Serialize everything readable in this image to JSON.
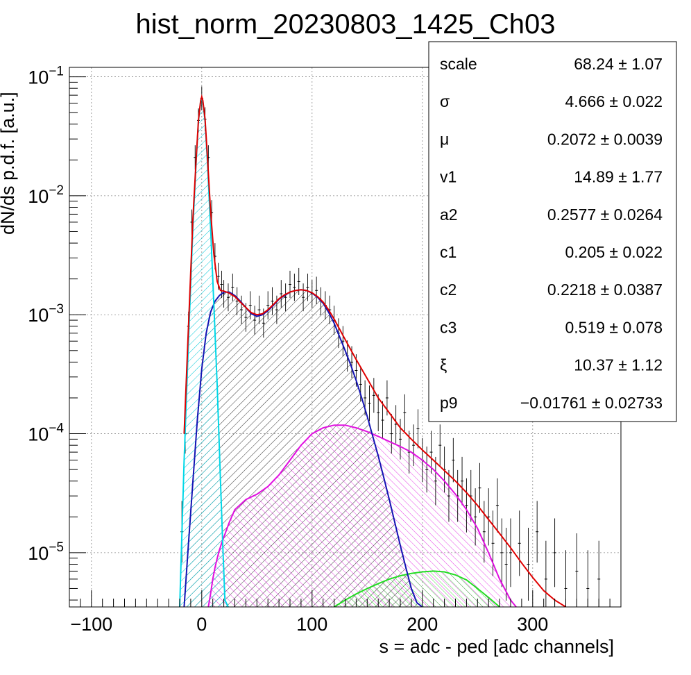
{
  "chart_data": {
    "type": "histogram",
    "title": "hist_norm_20230803_1425_Ch03",
    "xlabel": "s = adc - ped [adc channels]",
    "ylabel": "dN/ds p.d.f. [a.u.]",
    "xlim": [
      -120,
      380
    ],
    "ylim": [
      3.5e-06,
      0.12
    ],
    "y_scale": "log",
    "grid": true,
    "x_ticks": [
      {
        "value": -100,
        "label": "−100"
      },
      {
        "value": 0,
        "label": "0"
      },
      {
        "value": 100,
        "label": "100"
      },
      {
        "value": 200,
        "label": "200"
      },
      {
        "value": 300,
        "label": "300"
      }
    ],
    "y_ticks": [
      {
        "value": 0.1,
        "base": "10",
        "exp": "−1"
      },
      {
        "value": 0.01,
        "base": "10",
        "exp": "−2"
      },
      {
        "value": 0.001,
        "base": "10",
        "exp": "−3"
      },
      {
        "value": 0.0001,
        "base": "10",
        "exp": "−4"
      },
      {
        "value": 1e-05,
        "base": "10",
        "exp": "−5"
      }
    ],
    "stats_box": {
      "placement": "top-right",
      "rows": [
        {
          "name": "scale",
          "value": "68.24 ± 1.07"
        },
        {
          "name": "σ",
          "value": "4.666 ± 0.022"
        },
        {
          "name": "μ",
          "value": "0.2072 ± 0.0039"
        },
        {
          "name": "v1",
          "value": "14.89 ± 1.77"
        },
        {
          "name": "a2",
          "value": "0.2577 ± 0.0264"
        },
        {
          "name": "c1",
          "value": "0.205 ± 0.022"
        },
        {
          "name": "c2",
          "value": "0.2218 ± 0.0387"
        },
        {
          "name": "c3",
          "value": "0.519 ± 0.078"
        },
        {
          "name": "ξ",
          "value": "10.37 ± 1.12"
        },
        {
          "name": "p9",
          "value": "−0.01761 ± 0.02733"
        }
      ]
    },
    "series": [
      {
        "role": "pedestal-component",
        "color": "#00d8e8",
        "fill": "hatched",
        "x": [
          -20,
          -16,
          -12,
          -8,
          -5,
          -3,
          -1,
          0,
          1,
          3,
          5,
          8,
          11,
          14,
          17,
          19,
          21,
          24
        ],
        "y": [
          3.5e-06,
          6e-05,
          0.0006,
          0.0055,
          0.02,
          0.042,
          0.062,
          0.066,
          0.062,
          0.042,
          0.02,
          0.0055,
          0.0012,
          0.00025,
          4e-05,
          1.2e-05,
          4e-06,
          3.5e-06
        ]
      },
      {
        "role": "signal-component",
        "color": "#1414b4",
        "fill": "hatched",
        "x": [
          -16,
          -12,
          -8,
          -4,
          0,
          4,
          8,
          12,
          16,
          20,
          25,
          30,
          35,
          40,
          45,
          50,
          55,
          60,
          65,
          70,
          75,
          80,
          85,
          90,
          95,
          100,
          105,
          110,
          115,
          120,
          125,
          130,
          135,
          140,
          145,
          150,
          155,
          160,
          165,
          170,
          175,
          180,
          185,
          190,
          195,
          200
        ],
        "y": [
          3.5e-06,
          1.2e-05,
          4e-05,
          0.00013,
          0.00035,
          0.0007,
          0.00105,
          0.0013,
          0.00145,
          0.00155,
          0.00155,
          0.00145,
          0.0013,
          0.00115,
          0.00102,
          0.00097,
          0.001,
          0.00108,
          0.0012,
          0.00135,
          0.00145,
          0.00155,
          0.0016,
          0.00162,
          0.0016,
          0.00152,
          0.0014,
          0.00125,
          0.00105,
          0.00085,
          0.00065,
          0.0005,
          0.00038,
          0.00028,
          0.0002,
          0.00014,
          9.5e-05,
          6.5e-05,
          4.3e-05,
          2.8e-05,
          1.8e-05,
          1.15e-05,
          7.5e-06,
          5e-06,
          3.8e-06,
          3.5e-06
        ]
      },
      {
        "role": "background-component-1",
        "color": "#e010e0",
        "fill": "hatched",
        "x": [
          6,
          8,
          10,
          12,
          14,
          16,
          18,
          20,
          25,
          30,
          40,
          50,
          60,
          70,
          80,
          90,
          100,
          110,
          120,
          130,
          140,
          150,
          160,
          170,
          180,
          190,
          200,
          210,
          220,
          230,
          240,
          250,
          260,
          270,
          280,
          285
        ],
        "y": [
          3.5e-06,
          4.5e-06,
          6e-06,
          7.5e-06,
          9e-06,
          1.05e-05,
          1.2e-05,
          1.35e-05,
          1.8e-05,
          2.3e-05,
          2.8e-05,
          3.1e-05,
          3.6e-05,
          4.5e-05,
          6e-05,
          8e-05,
          0.0001,
          0.000112,
          0.000118,
          0.000118,
          0.000112,
          0.000104,
          9.5e-05,
          8.6e-05,
          7.8e-05,
          7e-05,
          6e-05,
          5e-05,
          4e-05,
          3.1e-05,
          2.3e-05,
          1.6e-05,
          1e-05,
          6e-06,
          4e-06,
          3.5e-06
        ]
      },
      {
        "role": "background-component-2",
        "color": "#22dd22",
        "fill": "hatched",
        "x": [
          120,
          130,
          140,
          150,
          160,
          170,
          180,
          190,
          200,
          210,
          220,
          230,
          240,
          250,
          260,
          270
        ],
        "y": [
          3.5e-06,
          4e-06,
          4.5e-06,
          5e-06,
          5.5e-06,
          6e-06,
          6.4e-06,
          6.7e-06,
          6.9e-06,
          7e-06,
          6.9e-06,
          6.5e-06,
          5.9e-06,
          5e-06,
          4.2e-06,
          3.5e-06
        ]
      },
      {
        "role": "total-fit",
        "color": "#e00000",
        "x": [
          -16,
          -12,
          -8,
          -5,
          -3,
          -1,
          0,
          1,
          3,
          5,
          8,
          11,
          14,
          17,
          20,
          25,
          30,
          35,
          40,
          45,
          50,
          55,
          60,
          65,
          70,
          75,
          80,
          85,
          90,
          95,
          100,
          105,
          110,
          115,
          120,
          130,
          140,
          150,
          160,
          170,
          180,
          190,
          200,
          210,
          220,
          230,
          240,
          250,
          260,
          270,
          280,
          290,
          300,
          310,
          320,
          330
        ],
        "y": [
          0.0001,
          0.0008,
          0.0065,
          0.021,
          0.043,
          0.063,
          0.068,
          0.063,
          0.044,
          0.022,
          0.0075,
          0.0032,
          0.0019,
          0.0016,
          0.00158,
          0.00152,
          0.00142,
          0.00128,
          0.00115,
          0.00104,
          0.001,
          0.00102,
          0.0011,
          0.00122,
          0.00136,
          0.00147,
          0.00155,
          0.0016,
          0.00162,
          0.0016,
          0.00153,
          0.00142,
          0.00128,
          0.0011,
          0.00092,
          0.00062,
          0.00042,
          0.00029,
          0.0002,
          0.00015,
          0.000112,
          9e-05,
          7.3e-05,
          6e-05,
          4.9e-05,
          4e-05,
          3.2e-05,
          2.5e-05,
          1.9e-05,
          1.45e-05,
          1.1e-05,
          8.2e-06,
          6.2e-06,
          4.8e-06,
          4e-06,
          3.5e-06
        ]
      }
    ],
    "histogram_points": {
      "color": "#000000",
      "x": [
        -18,
        -15,
        -12,
        -9,
        -6,
        -3,
        0,
        3,
        6,
        9,
        12,
        15,
        18,
        20,
        24,
        28,
        32,
        36,
        40,
        44,
        48,
        52,
        56,
        60,
        64,
        68,
        72,
        76,
        80,
        84,
        88,
        92,
        96,
        100,
        104,
        108,
        112,
        116,
        120,
        124,
        128,
        132,
        136,
        140,
        144,
        148,
        152,
        156,
        160,
        164,
        168,
        172,
        176,
        180,
        184,
        188,
        192,
        196,
        200,
        204,
        208,
        212,
        216,
        220,
        224,
        228,
        232,
        236,
        240,
        244,
        248,
        252,
        256,
        260,
        264,
        268,
        272,
        276,
        280,
        288,
        296,
        304,
        312,
        320,
        330,
        340,
        350,
        360
      ],
      "y": [
        1.5e-05,
        0.0001,
        0.0008,
        0.006,
        0.021,
        0.043,
        0.066,
        0.044,
        0.021,
        0.0072,
        0.0031,
        0.0021,
        0.0018,
        0.0015,
        0.0014,
        0.0017,
        0.0013,
        0.0011,
        0.00095,
        0.0012,
        0.0009,
        0.0011,
        0.00085,
        0.0012,
        0.0013,
        0.0011,
        0.0015,
        0.0014,
        0.0018,
        0.0017,
        0.0019,
        0.0014,
        0.0017,
        0.0015,
        0.0016,
        0.0013,
        0.0012,
        0.0011,
        0.0009,
        0.0007,
        0.0006,
        0.00045,
        0.0004,
        0.00034,
        0.00026,
        0.0002,
        0.00018,
        0.00021,
        0.00015,
        0.00013,
        0.0002,
        0.0001,
        0.00012,
        9e-05,
        0.00015,
        7e-05,
        8e-05,
        0.00011,
        6e-05,
        5e-05,
        7e-05,
        4e-05,
        8e-05,
        5e-05,
        3e-05,
        6e-05,
        3e-05,
        4e-05,
        2.5e-05,
        3e-05,
        2e-05,
        3.5e-05,
        1.5e-05,
        2e-05,
        1.2e-05,
        2.5e-05,
        1e-05,
        8e-06,
        1e-05,
        1.2e-05,
        8e-06,
        1.5e-05,
        6e-06,
        1e-05,
        5e-06,
        7e-06,
        5e-06,
        6e-06
      ]
    }
  }
}
